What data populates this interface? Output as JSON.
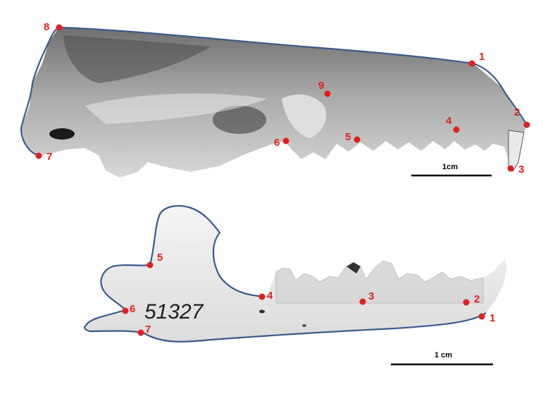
{
  "colors": {
    "landmark": "#e0201e",
    "outline": "#3a5a8c",
    "scale_bar": "#000000",
    "background": "#ffffff"
  },
  "skull": {
    "landmarks": [
      "1",
      "2",
      "3",
      "4",
      "5",
      "6",
      "7",
      "8",
      "9"
    ],
    "scale_label": "1cm"
  },
  "mandible": {
    "landmarks": [
      "1",
      "2",
      "3",
      "4",
      "5",
      "6",
      "7"
    ],
    "specimen_number": "51327",
    "scale_label": "1 cm"
  }
}
